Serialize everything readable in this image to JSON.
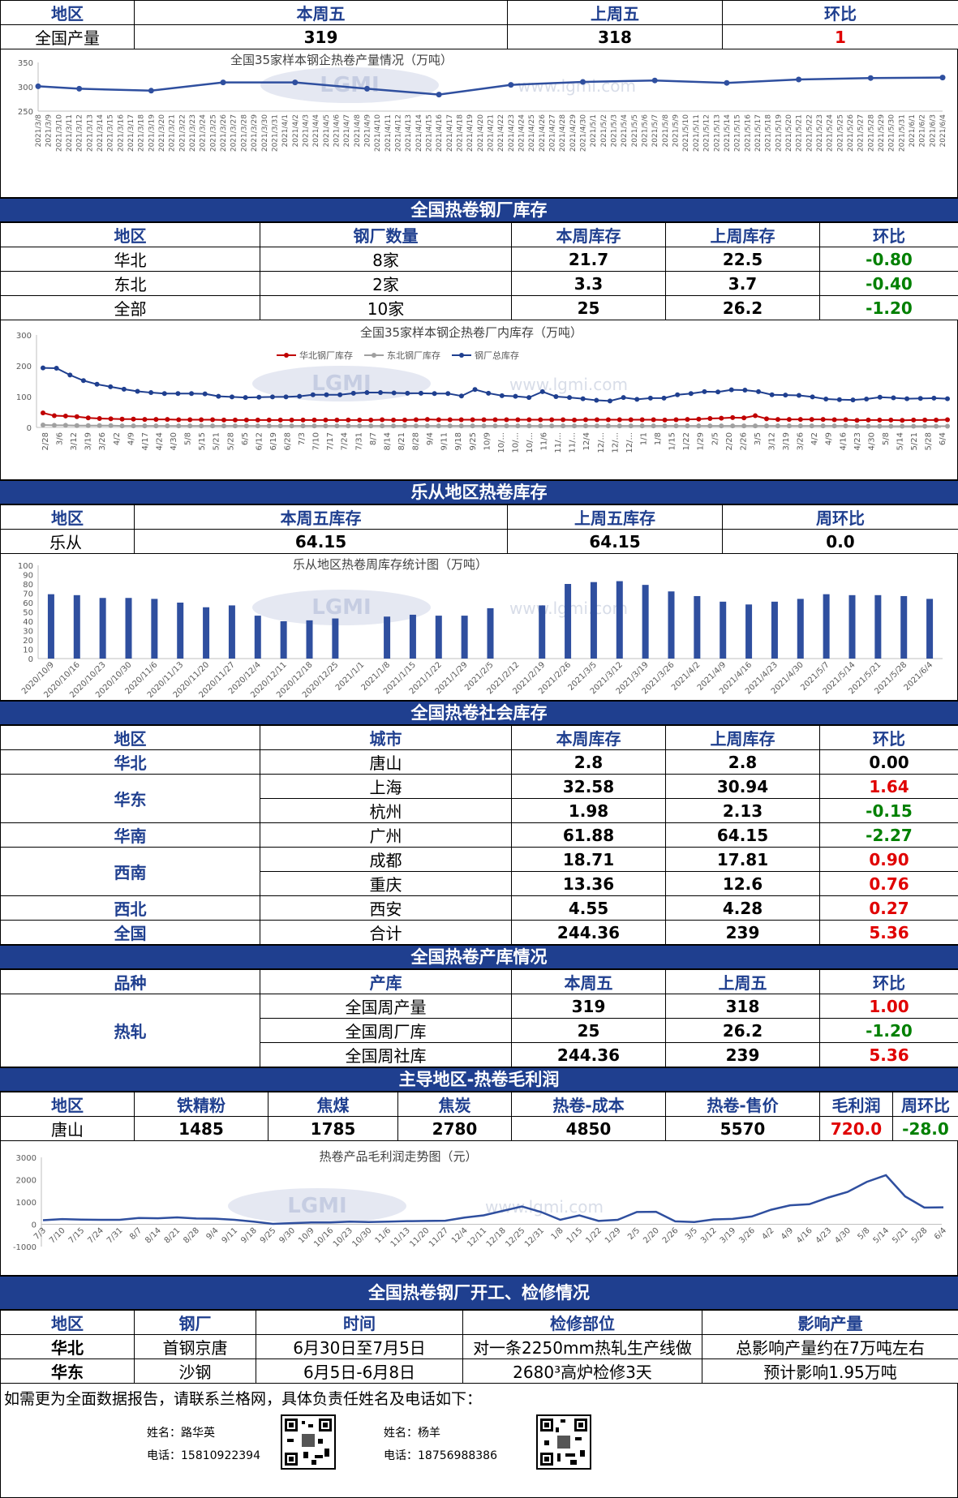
{
  "production": {
    "header": [
      "地区",
      "本周五",
      "上周五",
      "环比"
    ],
    "row": {
      "region": "全国产量",
      "this": "319",
      "last": "318",
      "change": "1"
    }
  },
  "colors": {
    "accent": "#1f3f8f",
    "up": "#e00000",
    "down": "#008000"
  },
  "watermark": {
    "logo": "LGMI",
    "site": "www.lgmi.com"
  },
  "chart_data": [
    {
      "type": "line",
      "title": "全国35家样本钢企热卷产量情况（万吨）",
      "ylim": [
        250,
        350
      ],
      "yticks": [
        "350",
        "300",
        "250"
      ],
      "x": [
        "2021/3/8",
        "2021/3/9",
        "2021/3/10",
        "2021/3/11",
        "2021/3/12",
        "2021/3/13",
        "2021/3/14",
        "2021/3/15",
        "2021/3/16",
        "2021/3/17",
        "2021/3/18",
        "2021/3/19",
        "2021/3/20",
        "2021/3/21",
        "2021/3/22",
        "2021/3/23",
        "2021/3/24",
        "2021/3/25",
        "2021/3/26",
        "2021/3/27",
        "2021/3/28",
        "2021/3/29",
        "2021/3/30",
        "2021/3/31",
        "2021/4/1",
        "2021/4/2",
        "2021/4/3",
        "2021/4/4",
        "2021/4/5",
        "2021/4/6",
        "2021/4/7",
        "2021/4/8",
        "2021/4/9",
        "2021/4/10",
        "2021/4/11",
        "2021/4/12",
        "2021/4/13",
        "2021/4/14",
        "2021/4/15",
        "2021/4/16",
        "2021/4/17",
        "2021/4/18",
        "2021/4/19",
        "2021/4/20",
        "2021/4/21",
        "2021/4/22",
        "2021/4/23",
        "2021/4/24",
        "2021/4/25",
        "2021/4/26",
        "2021/4/27",
        "2021/4/28",
        "2021/4/29",
        "2021/4/30",
        "2021/5/1",
        "2021/5/2",
        "2021/5/3",
        "2021/5/4",
        "2021/5/5",
        "2021/5/6",
        "2021/5/7",
        "2021/5/8",
        "2021/5/9",
        "2021/5/10",
        "2021/5/11",
        "2021/5/12",
        "2021/5/13",
        "2021/5/14",
        "2021/5/15",
        "2021/5/16",
        "2021/5/17",
        "2021/5/18",
        "2021/5/19",
        "2021/5/20",
        "2021/5/21",
        "2021/5/22",
        "2021/5/23",
        "2021/5/24",
        "2021/5/25",
        "2021/5/26",
        "2021/5/27",
        "2021/5/28",
        "2021/5/29",
        "2021/5/30",
        "2021/5/31",
        "2021/6/1",
        "2021/6/2",
        "2021/6/3",
        "2021/6/4"
      ],
      "points": [
        {
          "x": "2021/3/8",
          "y": 301
        },
        {
          "x": "2021/3/12",
          "y": 296
        },
        {
          "x": "2021/3/19",
          "y": 292
        },
        {
          "x": "2021/3/26",
          "y": 309
        },
        {
          "x": "2021/4/2",
          "y": 309
        },
        {
          "x": "2021/4/9",
          "y": 296
        },
        {
          "x": "2021/4/16",
          "y": 284
        },
        {
          "x": "2021/4/23",
          "y": 304
        },
        {
          "x": "2021/4/30",
          "y": 310
        },
        {
          "x": "2021/5/7",
          "y": 313
        },
        {
          "x": "2021/5/14",
          "y": 308
        },
        {
          "x": "2021/5/21",
          "y": 315
        },
        {
          "x": "2021/5/28",
          "y": 318
        },
        {
          "x": "2021/6/4",
          "y": 319
        }
      ]
    },
    {
      "type": "line",
      "title": "全国35家样本钢企热卷厂内库存（万吨）",
      "ylim": [
        0,
        300
      ],
      "yticks": [
        "300",
        "200",
        "100",
        "0"
      ],
      "series": [
        {
          "name": "华北钢厂库存",
          "color": "#c00000",
          "values": [
            47,
            38,
            37,
            35,
            31,
            29,
            28,
            27,
            27,
            26,
            26,
            26,
            25,
            25,
            25,
            25,
            24,
            24,
            24,
            24,
            24,
            24,
            24,
            24,
            24,
            24,
            24,
            24,
            24,
            24,
            25,
            24,
            24,
            25,
            26,
            25,
            25,
            25,
            25,
            25,
            25,
            25,
            25,
            25,
            25,
            25,
            25,
            24,
            25,
            25,
            25,
            25,
            25,
            25,
            25,
            24,
            25,
            26,
            27,
            29,
            30,
            32,
            31,
            38,
            28,
            26,
            26,
            26,
            26,
            26,
            25,
            25,
            23,
            24,
            24,
            24,
            23,
            24,
            24,
            24,
            25
          ]
        },
        {
          "name": "东北钢厂库存",
          "color": "#a0a0a0",
          "values": [
            8,
            7,
            7,
            6,
            6,
            6,
            6,
            5,
            5,
            5,
            5,
            5,
            5,
            5,
            5,
            5,
            5,
            5,
            5,
            5,
            5,
            5,
            5,
            5,
            5,
            5,
            5,
            5,
            5,
            5,
            5,
            5,
            5,
            5,
            5,
            5,
            5,
            5,
            5,
            5,
            5,
            5,
            5,
            5,
            5,
            5,
            5,
            5,
            5,
            5,
            5,
            5,
            5,
            5,
            5,
            5,
            5,
            5,
            5,
            5,
            5,
            5,
            5,
            5,
            5,
            5,
            5,
            5,
            5,
            5,
            5,
            5,
            4,
            4,
            4,
            4,
            4,
            4,
            4,
            4,
            4
          ]
        },
        {
          "name": "钢厂总库存",
          "color": "#1f3f8f",
          "values": [
            193,
            192,
            170,
            152,
            140,
            132,
            124,
            117,
            113,
            110,
            110,
            110,
            109,
            101,
            99,
            97,
            98,
            99,
            99,
            101,
            106,
            106,
            106,
            111,
            113,
            113,
            112,
            111,
            111,
            110,
            110,
            102,
            123,
            111,
            103,
            101,
            97,
            116,
            100,
            97,
            93,
            88,
            86,
            97,
            91,
            95,
            95,
            106,
            110,
            116,
            115,
            122,
            121,
            116,
            106,
            105,
            104,
            99,
            92,
            90,
            89,
            92,
            98,
            96,
            93,
            94,
            95,
            93
          ]
        }
      ],
      "xticks": [
        "2/28",
        "3/6",
        "3/12",
        "3/19",
        "3/26",
        "4/2",
        "4/9",
        "4/17",
        "4/24",
        "4/30",
        "5/8",
        "5/15",
        "5/21",
        "5/28",
        "6/5",
        "6/12",
        "6/19",
        "6/28",
        "7/3",
        "7/10",
        "7/17",
        "7/24",
        "7/31",
        "8/7",
        "8/14",
        "8/21",
        "8/28",
        "9/4",
        "9/11",
        "9/18",
        "9/25",
        "10/9",
        "10/...",
        "10/...",
        "10/...",
        "11/6",
        "11/...",
        "11/...",
        "12/4",
        "12/...",
        "12/...",
        "12/...",
        "1/1",
        "1/8",
        "1/15",
        "1/22",
        "1/29",
        "2/5",
        "2/20",
        "2/26",
        "3/5",
        "3/12",
        "3/19",
        "3/26",
        "4/2",
        "4/9",
        "4/16",
        "4/23",
        "4/30",
        "5/8",
        "5/14",
        "5/21",
        "5/28",
        "6/4"
      ]
    },
    {
      "type": "bar",
      "title": "乐从地区热卷周库存统计图（万吨）",
      "ylim": [
        0,
        100
      ],
      "yticks": [
        "100",
        "90",
        "80",
        "70",
        "60",
        "50",
        "40",
        "30",
        "20",
        "10",
        "0"
      ],
      "categories": [
        "2020/10/9",
        "2020/10/16",
        "2020/10/23",
        "2020/10/30",
        "2020/11/6",
        "2020/11/13",
        "2020/11/20",
        "2020/11/27",
        "2020/12/4",
        "2020/12/11",
        "2020/12/18",
        "2020/12/25",
        "2021/1/1",
        "2021/1/8",
        "2021/1/15",
        "2021/1/22",
        "2021/1/29",
        "2021/2/5",
        "2021/2/12",
        "2021/2/19",
        "2021/2/26",
        "2021/3/5",
        "2021/3/12",
        "2021/3/19",
        "2021/3/26",
        "2021/4/2",
        "2021/4/9",
        "2021/4/16",
        "2021/4/23",
        "2021/4/30",
        "2021/5/7",
        "2021/5/14",
        "2021/5/21",
        "2021/5/28",
        "2021/6/4"
      ],
      "values": [
        69,
        68,
        65,
        65,
        64,
        60,
        55,
        57,
        46,
        40,
        41,
        43,
        0,
        45,
        47,
        46,
        46,
        54,
        0,
        57,
        80,
        82,
        83,
        79,
        72,
        67,
        61,
        58,
        61,
        64,
        69,
        68,
        68,
        67,
        64
      ]
    },
    {
      "type": "line",
      "title": "热卷产品毛利润走势图（元）",
      "ylim": [
        -1000,
        3000
      ],
      "yticks": [
        "3000",
        "2000",
        "1000",
        "0",
        "-1000"
      ],
      "xticks": [
        "7/3",
        "7/10",
        "7/15",
        "7/24",
        "7/31",
        "8/7",
        "8/14",
        "8/21",
        "8/28",
        "9/4",
        "9/11",
        "9/18",
        "9/25",
        "9/30",
        "10/9",
        "10/16",
        "10/23",
        "10/30",
        "11/6",
        "11/13",
        "11/20",
        "11/27",
        "12/4",
        "12/11",
        "12/18",
        "12/25",
        "12/31",
        "1/8",
        "1/15",
        "1/22",
        "1/29",
        "2/5",
        "2/20",
        "2/26",
        "3/5",
        "3/12",
        "3/19",
        "3/26",
        "4/2",
        "4/9",
        "4/16",
        "4/23",
        "4/30",
        "5/8",
        "5/14",
        "5/21",
        "5/28",
        "6/4"
      ],
      "values": [
        180,
        230,
        210,
        200,
        200,
        280,
        270,
        310,
        260,
        250,
        200,
        120,
        20,
        50,
        80,
        80,
        120,
        100,
        120,
        140,
        150,
        160,
        300,
        400,
        600,
        800,
        550,
        200,
        400,
        150,
        200,
        550,
        560,
        130,
        100,
        220,
        240,
        350,
        650,
        850,
        900,
        1200,
        1450,
        1900,
        2200,
        1250,
        750,
        760
      ]
    }
  ],
  "inventory": {
    "title": "全国热卷钢厂库存",
    "header": [
      "地区",
      "钢厂数量",
      "本周库存",
      "上周库存",
      "环比"
    ],
    "rows": [
      {
        "region": "华北",
        "count": "8家",
        "this": "21.7",
        "last": "22.5",
        "change": "-0.80"
      },
      {
        "region": "东北",
        "count": "2家",
        "this": "3.3",
        "last": "3.7",
        "change": "-0.40"
      },
      {
        "region": "全部",
        "count": "10家",
        "this": "25",
        "last": "26.2",
        "change": "-1.20"
      }
    ]
  },
  "lecong": {
    "title": "乐从地区热卷库存",
    "header": [
      "地区",
      "本周五库存",
      "上周五库存",
      "周环比"
    ],
    "row": {
      "region": "乐从",
      "this": "64.15",
      "last": "64.15",
      "change": "0.0"
    }
  },
  "social": {
    "title": "全国热卷社会库存",
    "header": [
      "地区",
      "城市",
      "本周库存",
      "上周库存",
      "环比"
    ],
    "rows": [
      {
        "region": "华北",
        "city": "唐山",
        "this": "2.8",
        "last": "2.8",
        "change": "0.00"
      },
      {
        "region": "华东",
        "city": "上海",
        "this": "32.58",
        "last": "30.94",
        "change": "1.64"
      },
      {
        "region": "",
        "city": "杭州",
        "this": "1.98",
        "last": "2.13",
        "change": "-0.15"
      },
      {
        "region": "华南",
        "city": "广州",
        "this": "61.88",
        "last": "64.15",
        "change": "-2.27"
      },
      {
        "region": "西南",
        "city": "成都",
        "this": "18.71",
        "last": "17.81",
        "change": "0.90"
      },
      {
        "region": "",
        "city": "重庆",
        "this": "13.36",
        "last": "12.6",
        "change": "0.76"
      },
      {
        "region": "西北",
        "city": "西安",
        "this": "4.55",
        "last": "4.28",
        "change": "0.27"
      },
      {
        "region": "全国",
        "city": "合计",
        "this": "244.36",
        "last": "239",
        "change": "5.36"
      }
    ]
  },
  "prodinv": {
    "title": "全国热卷产库情况",
    "header": [
      "品种",
      "产库",
      "本周五",
      "上周五",
      "环比"
    ],
    "product": "热轧",
    "rows": [
      {
        "item": "全国周产量",
        "this": "319",
        "last": "318",
        "change": "1.00"
      },
      {
        "item": "全国周厂库",
        "this": "25",
        "last": "26.2",
        "change": "-1.20"
      },
      {
        "item": "全国周社库",
        "this": "244.36",
        "last": "239",
        "change": "5.36"
      }
    ]
  },
  "profit": {
    "title": "主导地区-热卷毛利润",
    "header": [
      "地区",
      "铁精粉",
      "焦煤",
      "焦炭",
      "热卷-成本",
      "热卷-售价",
      "毛利润",
      "周环比"
    ],
    "row": {
      "region": "唐山",
      "ore": "1485",
      "coal": "1785",
      "coke": "2780",
      "cost": "4850",
      "price": "5570",
      "margin": "720.0",
      "change": "-28.0"
    }
  },
  "maint": {
    "title": "全国热卷钢厂开工、检修情况",
    "header": [
      "地区",
      "钢厂",
      "时间",
      "检修部位",
      "影响产量"
    ],
    "rows": [
      {
        "region": "华北",
        "mill": "首钢京唐",
        "time": "6月30日至7月5日",
        "part": "对一条2250mm热轧生产线做",
        "impact": "总影响产量约在7万吨左右"
      },
      {
        "region": "华东",
        "mill": "沙钢",
        "time": "6月5日-6月8日",
        "part": "2680³高炉检修3天",
        "impact": "预计影响1.95万吨"
      }
    ]
  },
  "footer": {
    "note": "如需更为全面数据报告，请联系兰格网，具体负责任姓名及电话如下：",
    "contact1": {
      "name": "姓名：路华英",
      "phone": "电话：15810922394"
    },
    "contact2": {
      "name": "姓名：杨羊",
      "phone": "电话：18756988386"
    }
  }
}
